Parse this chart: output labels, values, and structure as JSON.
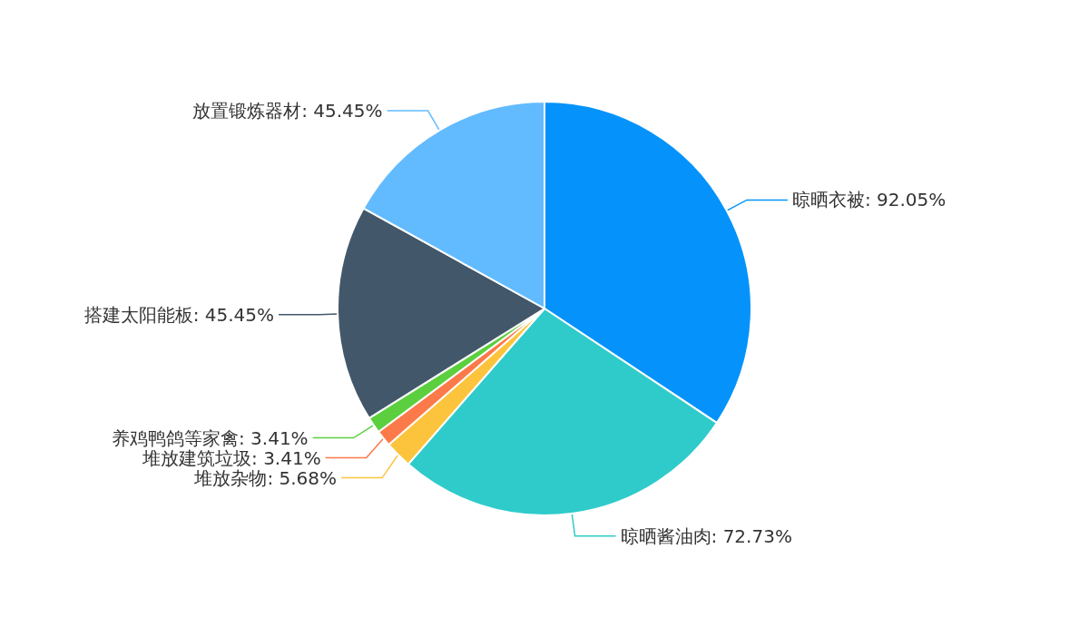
{
  "chart_data": {
    "type": "pie",
    "categories": [
      "晾晒衣被",
      "晾晒酱油肉",
      "堆放杂物",
      "堆放建筑垃圾",
      "养鸡鸭鸽等家禽",
      "搭建太阳能板",
      "放置锻炼器材"
    ],
    "values": [
      92.05,
      72.73,
      5.68,
      3.41,
      3.41,
      45.45,
      45.45
    ],
    "value_labels": [
      "92.05%",
      "72.73%",
      "5.68%",
      "3.41%",
      "3.41%",
      "45.45%",
      "45.45%"
    ],
    "colors": [
      "#0593fb",
      "#2fcbcb",
      "#fcc43c",
      "#fc7a4a",
      "#5ccf3e",
      "#43576a",
      "#63bbff"
    ],
    "legend": false
  }
}
